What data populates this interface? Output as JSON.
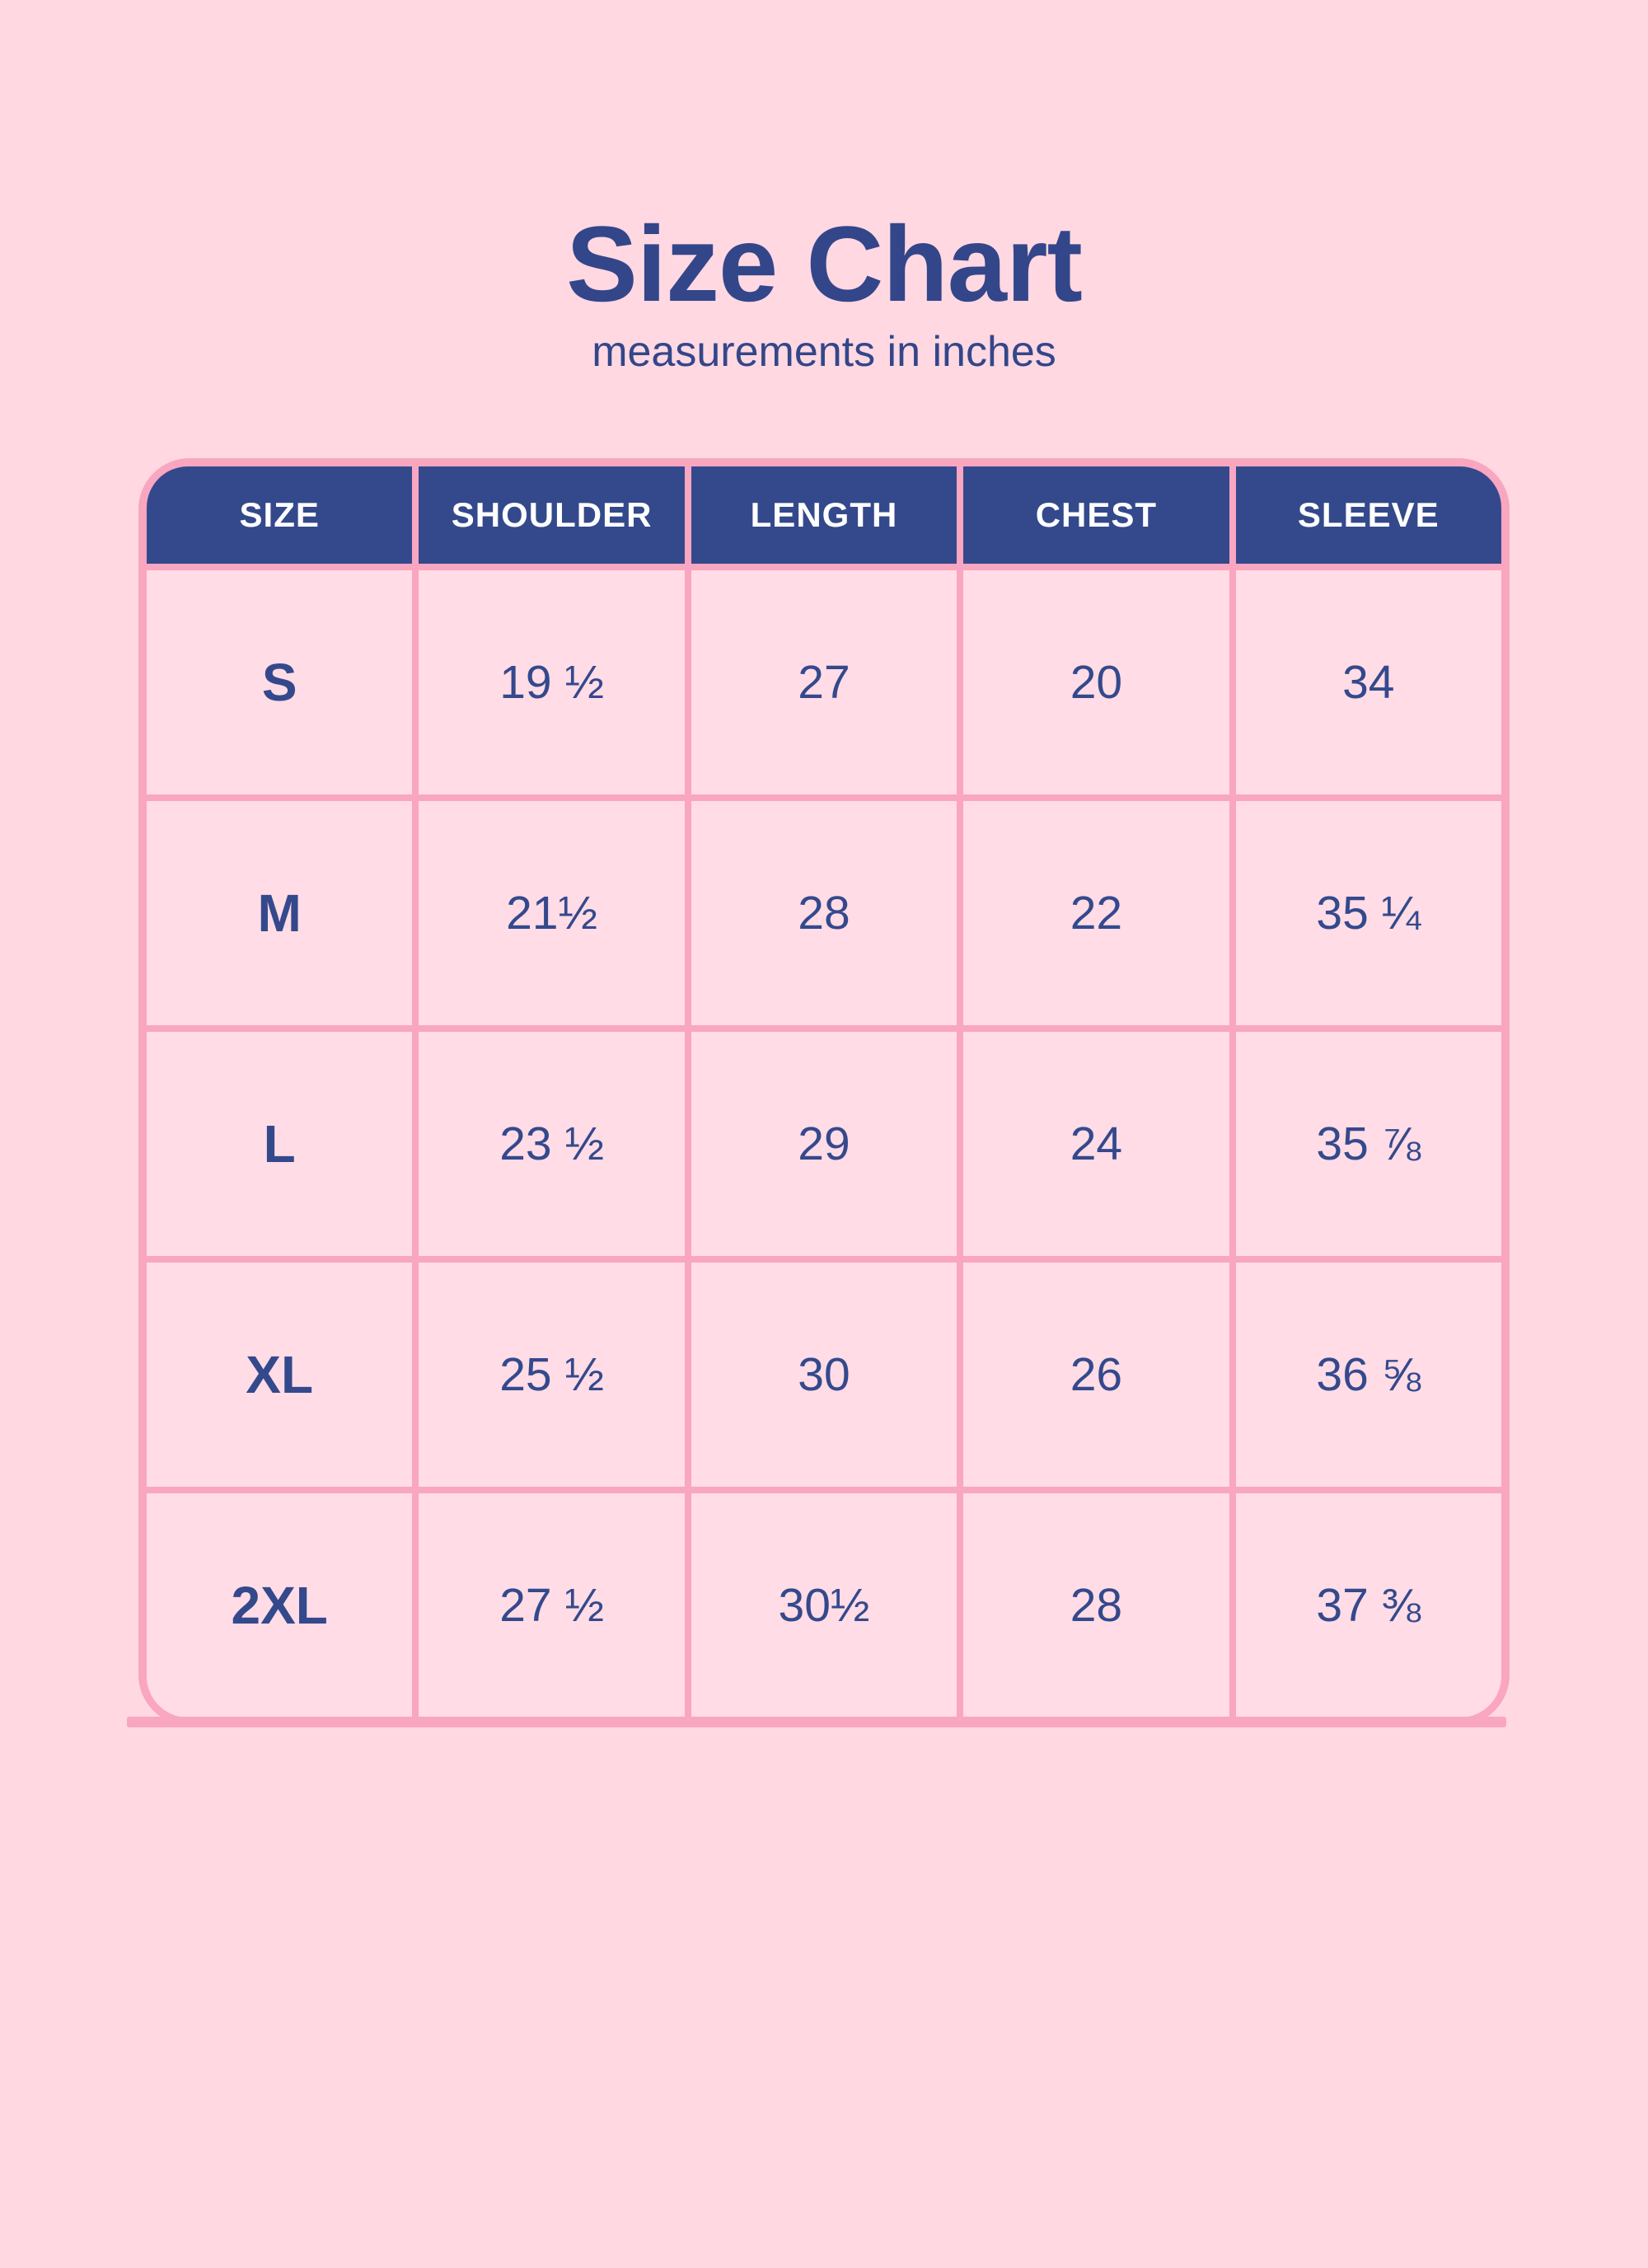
{
  "title": "Size Chart",
  "subtitle": "measurements in inches",
  "colors": {
    "page-bg": "#FFD8E2",
    "cell-bg": "#FFDCE6",
    "grid-pink": "#F9A6C0",
    "navy": "#34498C",
    "title-navy": "#33468A",
    "header-text": "#FFFFFF"
  },
  "chart_data": {
    "type": "table",
    "title": "Size Chart",
    "subtitle": "measurements in inches",
    "units": "inches",
    "columns": [
      "SIZE",
      "SHOULDER",
      "LENGTH",
      "CHEST",
      "SLEEVE"
    ],
    "rows": [
      [
        "S",
        "19 ½",
        "27",
        "20",
        "34"
      ],
      [
        "M",
        "21½",
        "28",
        "22",
        "35 ¼"
      ],
      [
        "L",
        "23 ½",
        "29",
        "24",
        "35 ⅞"
      ],
      [
        "XL",
        "25 ½",
        "30",
        "26",
        "36 ⅝"
      ],
      [
        "2XL",
        "27 ½",
        "30½",
        "28",
        "37 ⅜"
      ]
    ]
  }
}
